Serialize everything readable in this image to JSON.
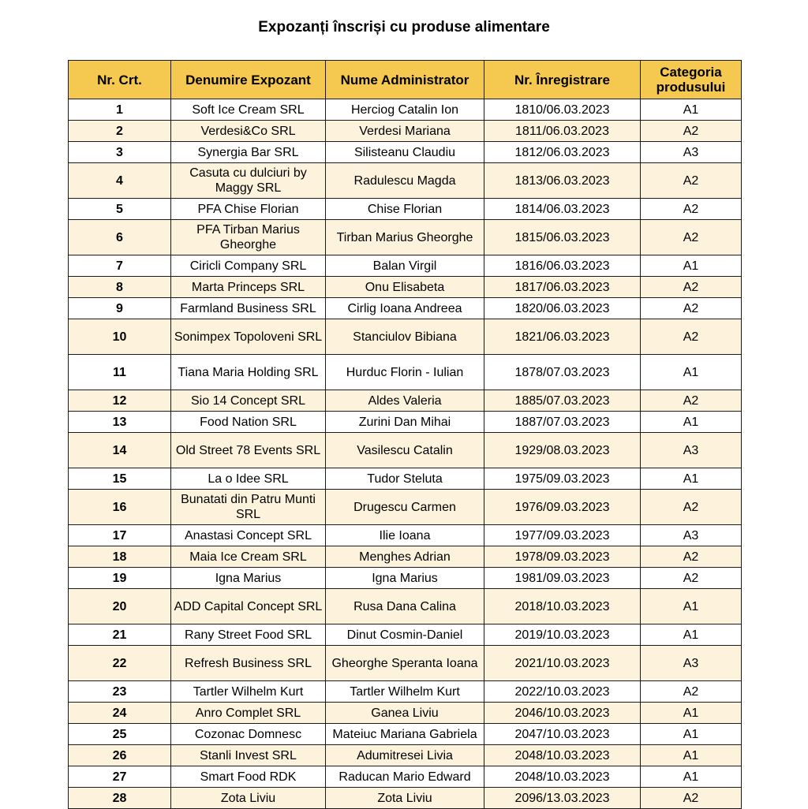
{
  "title": "Expozanți înscriși cu produse alimentare",
  "columns": [
    "Nr. Crt.",
    "Denumire Expozant",
    "Nume Administrator",
    "Nr. Înregistrare",
    "Categoria produsului"
  ],
  "colors": {
    "header": "#f5c94f",
    "stripe": "#fdf3dc"
  },
  "rows": [
    {
      "nr": "1",
      "name": "Soft Ice Cream SRL",
      "admin": "Herciog Catalin Ion",
      "reg": "1810/06.03.2023",
      "cat": "A1"
    },
    {
      "nr": "2",
      "name": "Verdesi&Co SRL",
      "admin": "Verdesi Mariana",
      "reg": "1811/06.03.2023",
      "cat": "A2"
    },
    {
      "nr": "3",
      "name": "Synergia Bar SRL",
      "admin": "Silisteanu Claudiu",
      "reg": "1812/06.03.2023",
      "cat": "A3"
    },
    {
      "nr": "4",
      "name": "Casuta cu dulciuri by Maggy SRL",
      "admin": "Radulescu Magda",
      "reg": "1813/06.03.2023",
      "cat": "A2"
    },
    {
      "nr": "5",
      "name": "PFA Chise Florian",
      "admin": "Chise Florian",
      "reg": "1814/06.03.2023",
      "cat": "A2"
    },
    {
      "nr": "6",
      "name": "PFA Tirban Marius Gheorghe",
      "admin": "Tirban Marius Gheorghe",
      "reg": "1815/06.03.2023",
      "cat": "A2"
    },
    {
      "nr": "7",
      "name": "Ciricli Company SRL",
      "admin": "Balan Virgil",
      "reg": "1816/06.03.2023",
      "cat": "A1"
    },
    {
      "nr": "8",
      "name": "Marta Princeps SRL",
      "admin": "Onu Elisabeta",
      "reg": "1817/06.03.2023",
      "cat": "A2"
    },
    {
      "nr": "9",
      "name": "Farmland Business SRL",
      "admin": "Cirlig Ioana Andreea",
      "reg": "1820/06.03.2023",
      "cat": "A2"
    },
    {
      "nr": "10",
      "name": "Sonimpex Topoloveni SRL",
      "admin": "Stanciulov Bibiana",
      "reg": "1821/06.03.2023",
      "cat": "A2"
    },
    {
      "nr": "11",
      "name": "Tiana Maria Holding SRL",
      "admin": "Hurduc Florin - Iulian",
      "reg": "1878/07.03.2023",
      "cat": "A1"
    },
    {
      "nr": "12",
      "name": "Sio 14 Concept SRL",
      "admin": "Aldes Valeria",
      "reg": "1885/07.03.2023",
      "cat": "A2"
    },
    {
      "nr": "13",
      "name": "Food Nation SRL",
      "admin": "Zurini Dan Mihai",
      "reg": "1887/07.03.2023",
      "cat": "A1"
    },
    {
      "nr": "14",
      "name": "Old Street 78 Events SRL",
      "admin": "Vasilescu Catalin",
      "reg": "1929/08.03.2023",
      "cat": "A3"
    },
    {
      "nr": "15",
      "name": "La o Idee SRL",
      "admin": "Tudor Steluta",
      "reg": "1975/09.03.2023",
      "cat": "A1"
    },
    {
      "nr": "16",
      "name": "Bunatati din Patru Munti SRL",
      "admin": "Drugescu Carmen",
      "reg": "1976/09.03.2023",
      "cat": "A2"
    },
    {
      "nr": "17",
      "name": "Anastasi Concept SRL",
      "admin": "Ilie Ioana",
      "reg": "1977/09.03.2023",
      "cat": "A3"
    },
    {
      "nr": "18",
      "name": "Maia Ice Cream SRL",
      "admin": "Menghes Adrian",
      "reg": "1978/09.03.2023",
      "cat": "A2"
    },
    {
      "nr": "19",
      "name": "Igna Marius",
      "admin": "Igna Marius",
      "reg": "1981/09.03.2023",
      "cat": "A2"
    },
    {
      "nr": "20",
      "name": "ADD Capital Concept SRL",
      "admin": "Rusa Dana Calina",
      "reg": "2018/10.03.2023",
      "cat": "A1"
    },
    {
      "nr": "21",
      "name": "Rany Street Food SRL",
      "admin": "Dinut Cosmin-Daniel",
      "reg": "2019/10.03.2023",
      "cat": "A1"
    },
    {
      "nr": "22",
      "name": "Refresh Business SRL",
      "admin": "Gheorghe Speranta Ioana",
      "reg": "2021/10.03.2023",
      "cat": "A3"
    },
    {
      "nr": "23",
      "name": "Tartler Wilhelm Kurt",
      "admin": "Tartler Wilhelm Kurt",
      "reg": "2022/10.03.2023",
      "cat": "A2"
    },
    {
      "nr": "24",
      "name": "Anro Complet SRL",
      "admin": "Ganea Liviu",
      "reg": "2046/10.03.2023",
      "cat": "A1"
    },
    {
      "nr": "25",
      "name": "Cozonac Domnesc",
      "admin": "Mateiuc Mariana Gabriela",
      "reg": "2047/10.03.2023",
      "cat": "A1"
    },
    {
      "nr": "26",
      "name": "Stanli Invest SRL",
      "admin": "Adumitresei Livia",
      "reg": "2048/10.03.2023",
      "cat": "A1"
    },
    {
      "nr": "27",
      "name": "Smart Food RDK",
      "admin": "Raducan Mario Edward",
      "reg": "2048/10.03.2023",
      "cat": "A1"
    },
    {
      "nr": "28",
      "name": "Zota Liviu",
      "admin": "Zota Liviu",
      "reg": "2096/13.03.2023",
      "cat": "A2"
    }
  ]
}
